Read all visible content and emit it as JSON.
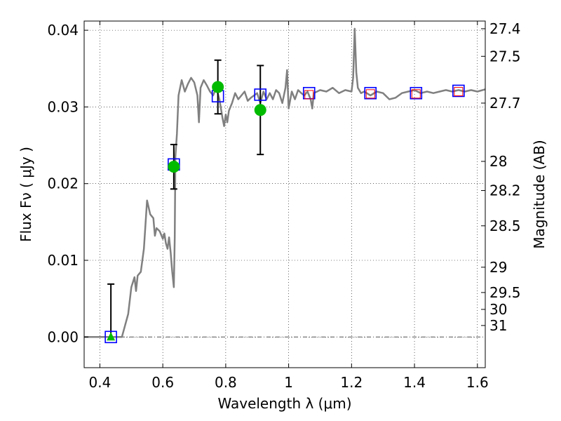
{
  "chart_data": {
    "type": "line",
    "xlabel": "Wavelength  λ (μm)",
    "ylabel": "Flux  Fν  ( μJy )",
    "y2label": "Magnitude (AB)",
    "xlim": [
      0.35,
      1.625
    ],
    "ylim": [
      -0.004,
      0.0412
    ],
    "grid": true,
    "xticks": [
      0.4,
      0.6,
      0.8,
      1.0,
      1.2,
      1.4,
      1.6
    ],
    "xtick_labels": [
      "0.4",
      "0.6",
      "0.8",
      "1",
      "1.2",
      "1.4",
      "1.6"
    ],
    "yticks": [
      0.0,
      0.01,
      0.02,
      0.03,
      0.04
    ],
    "ytick_labels": [
      "0.00",
      "0.01",
      "0.02",
      "0.03",
      "0.04"
    ],
    "right_ticks": [
      {
        "label": "27.4",
        "flux": 0.0402
      },
      {
        "label": "27.5",
        "flux": 0.0366
      },
      {
        "label": "27.7",
        "flux": 0.0305
      },
      {
        "label": "28",
        "flux": 0.0229
      },
      {
        "label": "28.2",
        "flux": 0.0191
      },
      {
        "label": "28.5",
        "flux": 0.0145
      },
      {
        "label": "29",
        "flux": 0.0091
      },
      {
        "label": "29.5",
        "flux": 0.0058
      },
      {
        "label": "30",
        "flux": 0.0036
      },
      {
        "label": "31",
        "flux": 0.0015
      }
    ],
    "model_spectrum": {
      "color": "#808080",
      "x": [
        0.35,
        0.47,
        0.48,
        0.49,
        0.5,
        0.51,
        0.515,
        0.52,
        0.53,
        0.54,
        0.55,
        0.56,
        0.57,
        0.575,
        0.58,
        0.59,
        0.6,
        0.605,
        0.61,
        0.615,
        0.62,
        0.625,
        0.63,
        0.635,
        0.638,
        0.64,
        0.645,
        0.65,
        0.66,
        0.67,
        0.68,
        0.69,
        0.7,
        0.71,
        0.715,
        0.72,
        0.73,
        0.74,
        0.75,
        0.76,
        0.77,
        0.78,
        0.79,
        0.795,
        0.8,
        0.805,
        0.81,
        0.82,
        0.83,
        0.84,
        0.85,
        0.86,
        0.87,
        0.88,
        0.89,
        0.9,
        0.91,
        0.92,
        0.93,
        0.94,
        0.95,
        0.96,
        0.97,
        0.98,
        0.99,
        0.995,
        1.0,
        1.01,
        1.02,
        1.03,
        1.04,
        1.05,
        1.06,
        1.07,
        1.075,
        1.08,
        1.1,
        1.12,
        1.14,
        1.16,
        1.18,
        1.2,
        1.205,
        1.21,
        1.215,
        1.22,
        1.23,
        1.24,
        1.26,
        1.28,
        1.3,
        1.32,
        1.34,
        1.36,
        1.38,
        1.4,
        1.42,
        1.44,
        1.46,
        1.48,
        1.5,
        1.52,
        1.54,
        1.56,
        1.58,
        1.6,
        1.625
      ],
      "y": [
        0.0,
        0.0,
        0.0015,
        0.003,
        0.0065,
        0.0078,
        0.006,
        0.008,
        0.0085,
        0.0115,
        0.0178,
        0.016,
        0.0155,
        0.0132,
        0.0142,
        0.0138,
        0.0128,
        0.0135,
        0.0122,
        0.0115,
        0.013,
        0.011,
        0.0085,
        0.0065,
        0.013,
        0.0235,
        0.0265,
        0.0315,
        0.0335,
        0.032,
        0.033,
        0.0338,
        0.0332,
        0.0315,
        0.028,
        0.0325,
        0.0335,
        0.0328,
        0.032,
        0.0315,
        0.0325,
        0.031,
        0.0285,
        0.0275,
        0.029,
        0.028,
        0.0295,
        0.0305,
        0.0318,
        0.031,
        0.0315,
        0.032,
        0.0308,
        0.0312,
        0.0315,
        0.0318,
        0.0305,
        0.032,
        0.031,
        0.0318,
        0.031,
        0.0322,
        0.0318,
        0.0305,
        0.0325,
        0.0348,
        0.0298,
        0.032,
        0.031,
        0.0322,
        0.0318,
        0.0315,
        0.032,
        0.031,
        0.0298,
        0.0318,
        0.0322,
        0.032,
        0.0325,
        0.0318,
        0.0322,
        0.032,
        0.0338,
        0.0402,
        0.0345,
        0.0325,
        0.0318,
        0.032,
        0.0315,
        0.032,
        0.0318,
        0.031,
        0.0312,
        0.0318,
        0.032,
        0.0322,
        0.0318,
        0.032,
        0.0318,
        0.032,
        0.0322,
        0.032,
        0.0322,
        0.032,
        0.0322,
        0.032,
        0.0323
      ]
    },
    "model_photometry": {
      "marker": "open-square",
      "color": "#0000ff",
      "x": [
        0.435,
        0.635,
        0.775,
        0.91,
        1.065,
        1.26,
        1.405,
        1.54
      ],
      "y": [
        0.0,
        0.0225,
        0.0314,
        0.0316,
        0.0318,
        0.0318,
        0.0318,
        0.0321
      ]
    },
    "hst_fit_points": {
      "marker": "open-square",
      "color": "#ff0000",
      "x": [
        1.065,
        1.26,
        1.405,
        1.54
      ],
      "y": [
        0.0316,
        0.0317,
        0.0317,
        0.032
      ]
    },
    "observed": {
      "marker": "filled-circle",
      "color": "#00bb00",
      "x": [
        0.635,
        0.775,
        0.91
      ],
      "y": [
        0.0222,
        0.0326,
        0.0296
      ],
      "yerr_low": [
        0.0029,
        0.0035,
        0.0058
      ],
      "yerr_high": [
        0.0029,
        0.0035,
        0.0058
      ]
    },
    "upper_limit": {
      "marker": "filled-triangle",
      "color": "#00bb00",
      "x": [
        0.435
      ],
      "y": [
        0.0
      ],
      "yerr_high": [
        0.0069
      ]
    }
  }
}
